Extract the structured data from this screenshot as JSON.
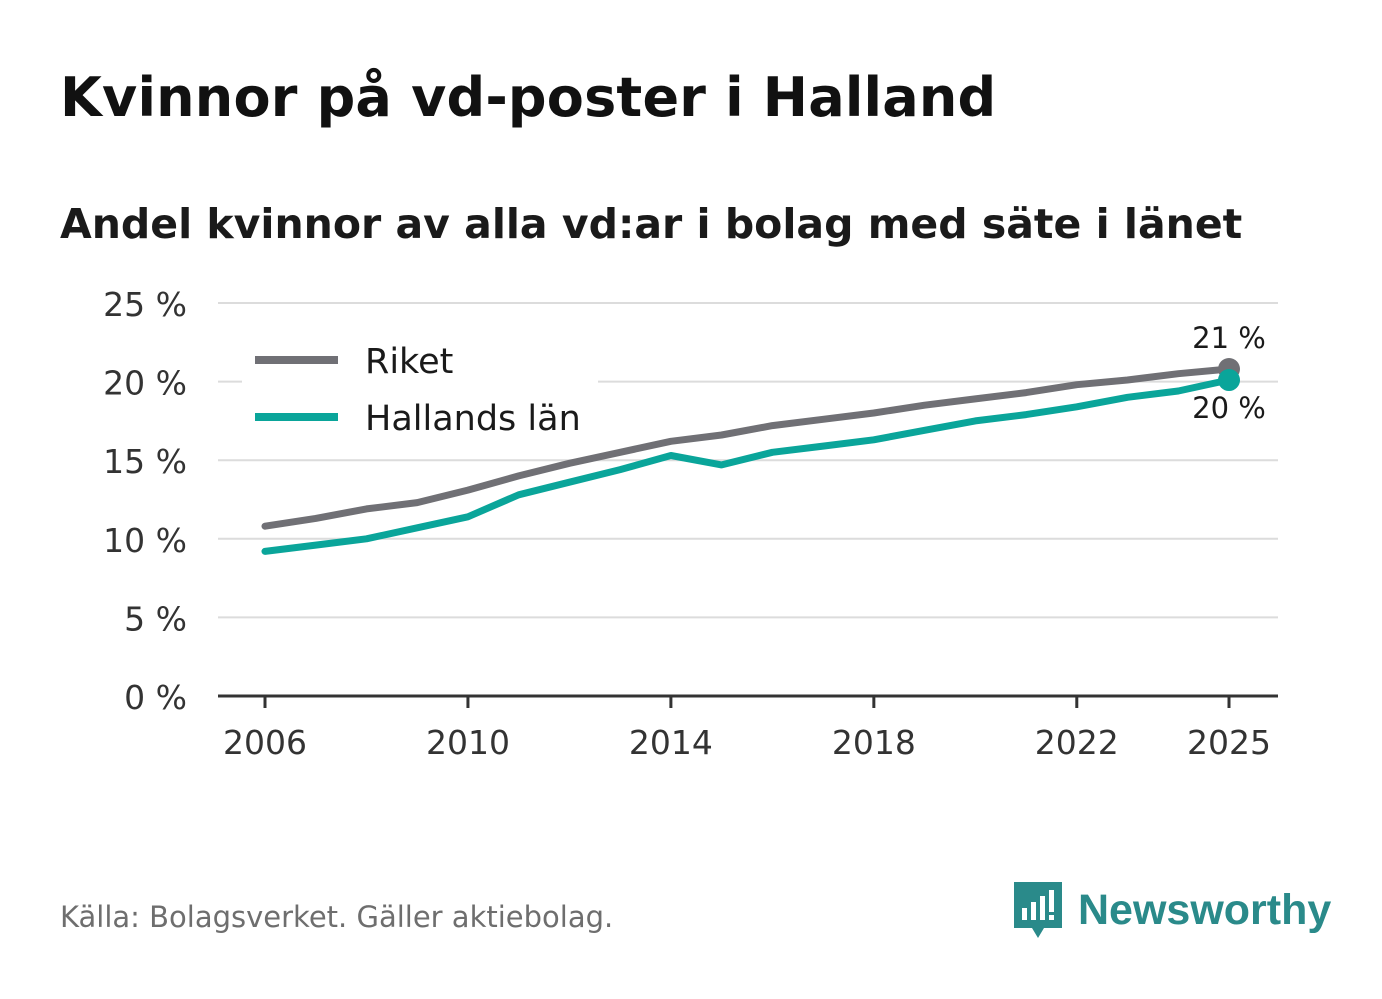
{
  "title": "Kvinnor på vd-poster i Halland",
  "subtitle": "Andel kvinnor av alla vd:ar i bolag med säte i länet",
  "source": "Källa: Bolagsverket. Gäller aktiebolag.",
  "brand": {
    "name": "Newsworthy",
    "icon": "newsworthy-logo-icon",
    "color": "#2a8a8a"
  },
  "chart_data": {
    "type": "line",
    "title": "Kvinnor på vd-poster i Halland",
    "subtitle": "Andel kvinnor av alla vd:ar i bolag med säte i länet",
    "xlabel": "",
    "ylabel": "",
    "x": [
      2006,
      2007,
      2008,
      2009,
      2010,
      2011,
      2012,
      2013,
      2014,
      2015,
      2016,
      2017,
      2018,
      2019,
      2020,
      2021,
      2022,
      2023,
      2024,
      2025
    ],
    "xlim": [
      2006,
      2025
    ],
    "ylim": [
      0,
      25
    ],
    "xticks": [
      2006,
      2010,
      2014,
      2018,
      2022,
      2025
    ],
    "yticks": [
      0,
      5,
      10,
      15,
      20,
      25
    ],
    "ytick_labels": [
      "0 %",
      "5 %",
      "10 %",
      "15 %",
      "20 %",
      "25 %"
    ],
    "grid": true,
    "legend_position": "top-left",
    "series": [
      {
        "name": "Riket",
        "color": "#707075",
        "values": [
          10.8,
          11.3,
          11.9,
          12.3,
          13.1,
          14.0,
          14.8,
          15.5,
          16.2,
          16.6,
          17.2,
          17.6,
          18.0,
          18.5,
          18.9,
          19.3,
          19.8,
          20.1,
          20.5,
          20.8
        ],
        "end_label": "21 %"
      },
      {
        "name": "Hallands län",
        "color": "#0aa59a",
        "values": [
          9.2,
          9.6,
          10.0,
          10.7,
          11.4,
          12.8,
          13.6,
          14.4,
          15.3,
          14.7,
          15.5,
          15.9,
          16.3,
          16.9,
          17.5,
          17.9,
          18.4,
          19.0,
          19.4,
          20.1
        ],
        "end_label": "20 %"
      }
    ]
  }
}
